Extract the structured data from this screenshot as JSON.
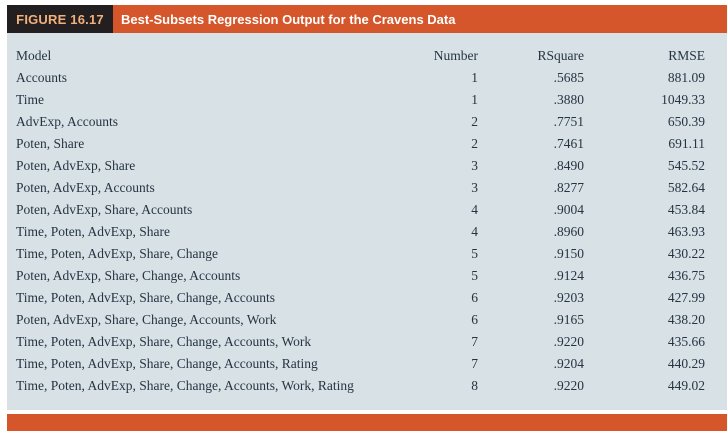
{
  "figure": {
    "label": "FIGURE 16.17",
    "title": "Best-Subsets Regression Output for the Cravens Data"
  },
  "colors": {
    "accent_orange": "#d4562a",
    "label_box_background": "#231f20",
    "label_text": "#f2b07c",
    "table_background": "#d8e1e6",
    "table_text": "#263442"
  },
  "table": {
    "columns": [
      "Model",
      "Number",
      "RSquare",
      "RMSE"
    ],
    "rows": [
      {
        "model": "Accounts",
        "number": "1",
        "rsquare": ".5685",
        "rmse": "881.09"
      },
      {
        "model": "Time",
        "number": "1",
        "rsquare": ".3880",
        "rmse": "1049.33"
      },
      {
        "model": "AdvExp, Accounts",
        "number": "2",
        "rsquare": ".7751",
        "rmse": "650.39"
      },
      {
        "model": "Poten, Share",
        "number": "2",
        "rsquare": ".7461",
        "rmse": "691.11"
      },
      {
        "model": "Poten, AdvExp, Share",
        "number": "3",
        "rsquare": ".8490",
        "rmse": "545.52"
      },
      {
        "model": "Poten, AdvExp, Accounts",
        "number": "3",
        "rsquare": ".8277",
        "rmse": "582.64"
      },
      {
        "model": "Poten, AdvExp, Share, Accounts",
        "number": "4",
        "rsquare": ".9004",
        "rmse": "453.84"
      },
      {
        "model": "Time, Poten, AdvExp, Share",
        "number": "4",
        "rsquare": ".8960",
        "rmse": "463.93"
      },
      {
        "model": "Time, Poten, AdvExp, Share, Change",
        "number": "5",
        "rsquare": ".9150",
        "rmse": "430.22"
      },
      {
        "model": "Poten, AdvExp, Share, Change, Accounts",
        "number": "5",
        "rsquare": ".9124",
        "rmse": "436.75"
      },
      {
        "model": "Time, Poten, AdvExp, Share, Change, Accounts",
        "number": "6",
        "rsquare": ".9203",
        "rmse": "427.99"
      },
      {
        "model": "Poten, AdvExp, Share, Change, Accounts, Work",
        "number": "6",
        "rsquare": ".9165",
        "rmse": "438.20"
      },
      {
        "model": "Time, Poten, AdvExp, Share, Change, Accounts, Work",
        "number": "7",
        "rsquare": ".9220",
        "rmse": "435.66"
      },
      {
        "model": "Time, Poten, AdvExp, Share, Change, Accounts, Rating",
        "number": "7",
        "rsquare": ".9204",
        "rmse": "440.29"
      },
      {
        "model": "Time, Poten, AdvExp, Share, Change, Accounts, Work, Rating",
        "number": "8",
        "rsquare": ".9220",
        "rmse": "449.02"
      }
    ]
  }
}
